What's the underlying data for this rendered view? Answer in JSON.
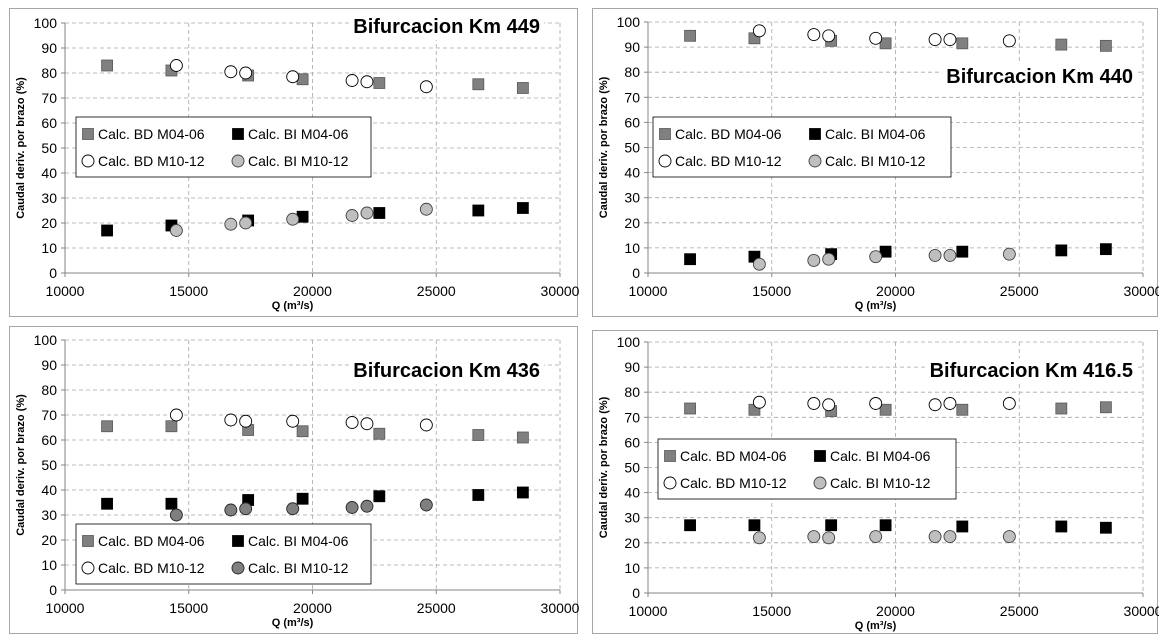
{
  "charts": {
    "note": ""
  },
  "chart_data": [
    {
      "type": "scatter",
      "title": "Bifurcacion Km 449",
      "xlabel": "Q (m³/s)",
      "ylabel": "Caudal deriv. por brazo (%)",
      "xlim": [
        10000,
        30000
      ],
      "ylim": [
        0,
        100
      ],
      "x_ticks": [
        "10000",
        "15000",
        "20000",
        "25000",
        "30000"
      ],
      "y_ticks": [
        "0",
        "10",
        "20",
        "30",
        "40",
        "50",
        "60",
        "70",
        "80",
        "90",
        "100"
      ],
      "grid": true,
      "legend_position": "middle-left",
      "series": [
        {
          "name": "Calc. BD M04-06",
          "marker": "square-gray",
          "x": [
            11700,
            14300,
            17400,
            19600,
            22700,
            26700,
            28500
          ],
          "y": [
            83,
            81,
            79,
            77.5,
            76,
            75.5,
            74
          ]
        },
        {
          "name": "Calc. BI M04-06",
          "marker": "square-black",
          "x": [
            11700,
            14300,
            17400,
            19600,
            22700,
            26700,
            28500
          ],
          "y": [
            17,
            19,
            21,
            22.5,
            24,
            25,
            26
          ]
        },
        {
          "name": "Calc. BD M10-12",
          "marker": "circle-white",
          "x": [
            14500,
            16700,
            17300,
            19200,
            21600,
            22200,
            24600
          ],
          "y": [
            83,
            80.5,
            80,
            78.5,
            77,
            76.5,
            74.5
          ]
        },
        {
          "name": "Calc. BI M10-12",
          "marker": "circle-lightgray",
          "x": [
            14500,
            16700,
            17300,
            19200,
            21600,
            22200,
            24600
          ],
          "y": [
            17,
            19.5,
            20,
            21.5,
            23,
            24,
            25.5
          ]
        }
      ]
    },
    {
      "type": "scatter",
      "title": "Bifurcacion Km 440",
      "xlabel": "Q (m³/s)",
      "ylabel": "Caudal deriv. por brazo (%)",
      "xlim": [
        10000,
        30000
      ],
      "ylim": [
        0,
        100
      ],
      "x_ticks": [
        "10000",
        "15000",
        "20000",
        "25000",
        "30000"
      ],
      "y_ticks": [
        "0",
        "10",
        "20",
        "30",
        "40",
        "50",
        "60",
        "70",
        "80",
        "90",
        "100"
      ],
      "grid": true,
      "legend_position": "middle-left",
      "series": [
        {
          "name": "Calc. BD M04-06",
          "marker": "square-gray",
          "x": [
            11700,
            14300,
            17400,
            19600,
            22700,
            26700,
            28500
          ],
          "y": [
            94.5,
            93.5,
            92.5,
            91.5,
            91.5,
            91,
            90.5
          ]
        },
        {
          "name": "Calc. BI M04-06",
          "marker": "square-black",
          "x": [
            11700,
            14300,
            17400,
            19600,
            22700,
            26700,
            28500
          ],
          "y": [
            5.5,
            6.5,
            7.5,
            8.5,
            8.5,
            9,
            9.5
          ]
        },
        {
          "name": "Calc. BD M10-12",
          "marker": "circle-white",
          "x": [
            14500,
            16700,
            17300,
            19200,
            21600,
            22200,
            24600
          ],
          "y": [
            96.5,
            95,
            94.5,
            93.5,
            93,
            93,
            92.5
          ]
        },
        {
          "name": "Calc. BI M10-12",
          "marker": "circle-lightgray",
          "x": [
            14500,
            16700,
            17300,
            19200,
            21600,
            22200,
            24600
          ],
          "y": [
            3.5,
            5,
            5.5,
            6.5,
            7,
            7,
            7.5
          ]
        }
      ]
    },
    {
      "type": "scatter",
      "title": "Bifurcacion Km 436",
      "xlabel": "Q (m³/s)",
      "ylabel": "Caudal deriv. por brazo (%)",
      "xlim": [
        10000,
        30000
      ],
      "ylim": [
        0,
        100
      ],
      "x_ticks": [
        "10000",
        "15000",
        "20000",
        "25000",
        "30000"
      ],
      "y_ticks": [
        "0",
        "10",
        "20",
        "30",
        "40",
        "50",
        "60",
        "70",
        "80",
        "90",
        "100"
      ],
      "grid": true,
      "legend_position": "bottom-left",
      "series": [
        {
          "name": "Calc. BD M04-06",
          "marker": "square-gray",
          "x": [
            11700,
            14300,
            17400,
            19600,
            22700,
            26700,
            28500
          ],
          "y": [
            65.5,
            65.5,
            64,
            63.5,
            62.5,
            62,
            61
          ]
        },
        {
          "name": "Calc. BI M04-06",
          "marker": "square-black",
          "x": [
            11700,
            14300,
            17400,
            19600,
            22700,
            26700,
            28500
          ],
          "y": [
            34.5,
            34.5,
            36,
            36.5,
            37.5,
            38,
            39
          ]
        },
        {
          "name": "Calc. BD M10-12",
          "marker": "circle-white",
          "x": [
            14500,
            16700,
            17300,
            19200,
            21600,
            22200,
            24600
          ],
          "y": [
            70,
            68,
            67.5,
            67.5,
            67,
            66.5,
            66
          ]
        },
        {
          "name": "Calc. BI M10-12",
          "marker": "circle-darkgray",
          "x": [
            14500,
            16700,
            17300,
            19200,
            21600,
            22200,
            24600
          ],
          "y": [
            30,
            32,
            32.5,
            32.5,
            33,
            33.5,
            34
          ]
        }
      ]
    },
    {
      "type": "scatter",
      "title": "Bifurcacion Km 416.5",
      "xlabel": "Q (m³/s)",
      "ylabel": "Caudal deriv. por brazo (%)",
      "xlim": [
        10000,
        30000
      ],
      "ylim": [
        0,
        100
      ],
      "x_ticks": [
        "10000",
        "15000",
        "20000",
        "25000",
        "30000"
      ],
      "y_ticks": [
        "0",
        "10",
        "20",
        "30",
        "40",
        "50",
        "60",
        "70",
        "80",
        "90",
        "100"
      ],
      "grid": true,
      "legend_position": "middle-left",
      "series": [
        {
          "name": "Calc. BD M04-06",
          "marker": "square-gray",
          "x": [
            11700,
            14300,
            17400,
            19600,
            22700,
            26700,
            28500
          ],
          "y": [
            73.5,
            73,
            72.5,
            73,
            73,
            73.5,
            74
          ]
        },
        {
          "name": "Calc. BI M04-06",
          "marker": "square-black",
          "x": [
            11700,
            14300,
            17400,
            19600,
            22700,
            26700,
            28500
          ],
          "y": [
            27,
            27,
            27,
            27,
            26.5,
            26.5,
            26
          ]
        },
        {
          "name": "Calc. BD M10-12",
          "marker": "circle-white",
          "x": [
            14500,
            16700,
            17300,
            19200,
            21600,
            22200,
            24600
          ],
          "y": [
            76,
            75.5,
            75,
            75.5,
            75,
            75.5,
            75.5
          ]
        },
        {
          "name": "Calc. BI M10-12",
          "marker": "circle-lightgray",
          "x": [
            14500,
            16700,
            17300,
            19200,
            21600,
            22200,
            24600
          ],
          "y": [
            22,
            22.5,
            22,
            22.5,
            22.5,
            22.5,
            22.5
          ]
        }
      ]
    }
  ],
  "colors": {
    "square_gray": "#808080",
    "square_black": "#000000",
    "circle_white": "#ffffff",
    "circle_lightgray": "#bfbfbf",
    "circle_darkgray": "#7f7f7f",
    "grid": "#a6a6a6",
    "frame": "#a6a6a6"
  }
}
